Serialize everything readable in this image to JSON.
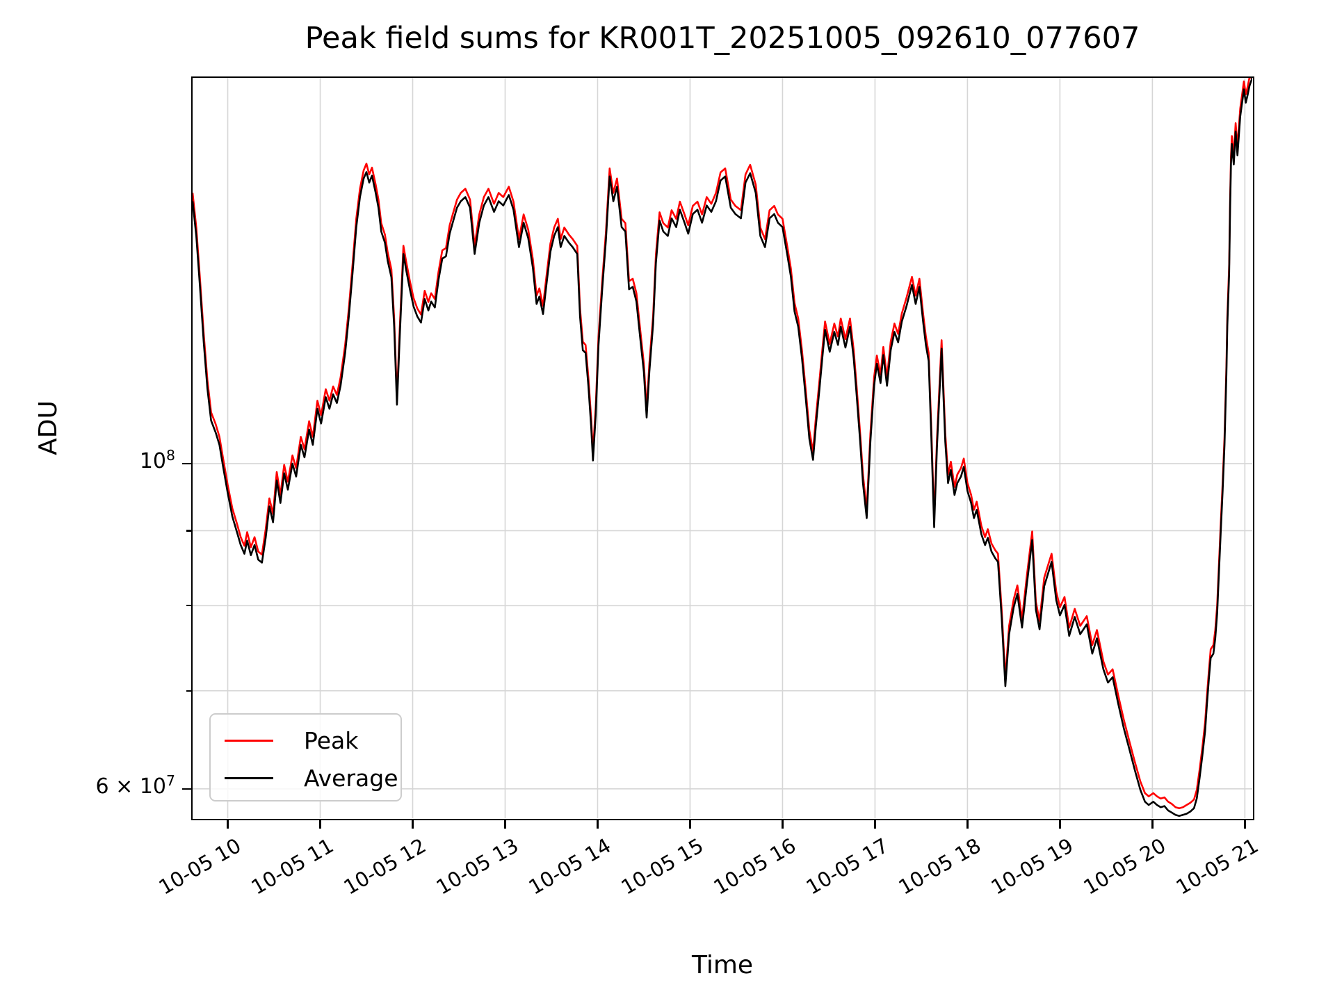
{
  "figure": {
    "title": "Peak field sums for KR001T_20251005_092610_077607",
    "xlabel": "Time",
    "ylabel": "ADU"
  },
  "legend": {
    "entries": [
      {
        "label": "Peak",
        "color": "#ff0000"
      },
      {
        "label": "Average",
        "color": "#000000"
      }
    ]
  },
  "chart_data": {
    "type": "line",
    "title": "Peak field sums for KR001T_20251005_092610_077607",
    "xlabel": "Time",
    "ylabel": "ADU",
    "yscale": "log",
    "grid": true,
    "grid_color": "#d6d6d6",
    "spine_color": "#000000",
    "legend_position": "lower left",
    "xlim_hours": [
      9.62,
      21.08
    ],
    "ylim": [
      57300000,
      183300000
    ],
    "x_ticks_hours": [
      10,
      11,
      12,
      13,
      14,
      15,
      16,
      17,
      18,
      19,
      20,
      21
    ],
    "x_tick_labels": [
      "10-05 10",
      "10-05 11",
      "10-05 12",
      "10-05 13",
      "10-05 14",
      "10-05 15",
      "10-05 16",
      "10-05 17",
      "10-05 18",
      "10-05 19",
      "10-05 20",
      "10-05 21"
    ],
    "y_major_ticks": [
      {
        "value_1e7": 10,
        "base": "10",
        "exp": "8"
      },
      {
        "value_1e7": 6,
        "base": "6 × 10",
        "exp": "7"
      }
    ],
    "y_minor_ticks_1e7": [
      7,
      8,
      9
    ],
    "y_gridline_values_1e7": [
      6,
      7,
      8,
      9,
      10
    ],
    "value_unit": "1e7 ADU",
    "x_hours": [
      9.62,
      9.66,
      9.7,
      9.74,
      9.78,
      9.82,
      9.87,
      9.91,
      9.95,
      10.0,
      10.05,
      10.1,
      10.14,
      10.18,
      10.21,
      10.25,
      10.29,
      10.33,
      10.37,
      10.41,
      10.45,
      10.49,
      10.53,
      10.57,
      10.61,
      10.65,
      10.7,
      10.74,
      10.79,
      10.83,
      10.88,
      10.92,
      10.97,
      11.01,
      11.06,
      11.1,
      11.14,
      11.18,
      11.22,
      11.27,
      11.31,
      11.35,
      11.39,
      11.43,
      11.47,
      11.5,
      11.53,
      11.56,
      11.6,
      11.63,
      11.66,
      11.7,
      11.73,
      11.77,
      11.8,
      11.83,
      11.86,
      11.9,
      11.93,
      11.97,
      12.01,
      12.05,
      12.09,
      12.13,
      12.17,
      12.2,
      12.24,
      12.28,
      12.32,
      12.36,
      12.4,
      12.44,
      12.48,
      12.52,
      12.57,
      12.62,
      12.67,
      12.72,
      12.77,
      12.82,
      12.88,
      12.93,
      12.98,
      13.04,
      13.09,
      13.15,
      13.2,
      13.25,
      13.3,
      13.34,
      13.37,
      13.41,
      13.45,
      13.49,
      13.53,
      13.57,
      13.6,
      13.64,
      13.69,
      13.73,
      13.78,
      13.81,
      13.84,
      13.87,
      13.9,
      13.93,
      13.95,
      13.98,
      14.01,
      14.05,
      14.09,
      14.13,
      14.17,
      14.21,
      14.26,
      14.3,
      14.34,
      14.38,
      14.42,
      14.46,
      14.5,
      14.53,
      14.56,
      14.6,
      14.63,
      14.67,
      14.71,
      14.76,
      14.8,
      14.85,
      14.89,
      14.94,
      14.98,
      15.03,
      15.08,
      15.13,
      15.18,
      15.23,
      15.28,
      15.33,
      15.38,
      15.44,
      15.49,
      15.55,
      15.6,
      15.65,
      15.71,
      15.76,
      15.81,
      15.86,
      15.91,
      15.95,
      16.0,
      16.05,
      16.09,
      16.13,
      16.17,
      16.21,
      16.25,
      16.29,
      16.33,
      16.36,
      16.4,
      16.43,
      16.46,
      16.51,
      16.56,
      16.6,
      16.63,
      16.68,
      16.73,
      16.77,
      16.8,
      16.84,
      16.87,
      16.91,
      16.95,
      16.99,
      17.02,
      17.06,
      17.09,
      17.13,
      17.17,
      17.21,
      17.25,
      17.29,
      17.34,
      17.4,
      17.44,
      17.48,
      17.52,
      17.55,
      17.58,
      17.61,
      17.64,
      17.67,
      17.72,
      17.76,
      17.79,
      17.82,
      17.86,
      17.89,
      17.93,
      17.96,
      18.0,
      18.04,
      18.07,
      18.1,
      18.15,
      18.19,
      18.22,
      18.26,
      18.3,
      18.33,
      18.37,
      18.41,
      18.45,
      18.5,
      18.54,
      18.59,
      18.64,
      18.7,
      18.74,
      18.78,
      18.83,
      18.91,
      18.96,
      19.0,
      19.05,
      19.1,
      19.16,
      19.22,
      19.29,
      19.35,
      19.4,
      19.47,
      19.52,
      19.57,
      19.63,
      19.69,
      19.75,
      19.81,
      19.87,
      19.92,
      19.96,
      20.01,
      20.05,
      20.09,
      20.13,
      20.17,
      20.21,
      20.25,
      20.29,
      20.33,
      20.37,
      20.41,
      20.45,
      20.48,
      20.51,
      20.54,
      20.57,
      20.59,
      20.61,
      20.63,
      20.66,
      20.68,
      20.7,
      20.72,
      20.74,
      20.76,
      20.78,
      20.8,
      20.81,
      20.83,
      20.84,
      20.85,
      20.86,
      20.88,
      20.9,
      20.92,
      20.95,
      20.99,
      21.01,
      21.03,
      21.05,
      21.08
    ],
    "series": [
      {
        "name": "Peak",
        "color": "#ff0000",
        "linewidth": 2.6,
        "values_1e7": [
          15.3,
          14.49,
          13.37,
          12.26,
          11.4,
          10.84,
          10.64,
          10.43,
          10.08,
          9.67,
          9.32,
          9.1,
          8.91,
          8.79,
          8.98,
          8.77,
          8.91,
          8.71,
          8.67,
          9.02,
          9.47,
          9.24,
          9.87,
          9.52,
          9.98,
          9.72,
          10.13,
          9.93,
          10.43,
          10.23,
          10.69,
          10.43,
          11.04,
          10.79,
          11.24,
          11.04,
          11.29,
          11.14,
          11.45,
          12.05,
          12.76,
          13.68,
          14.69,
          15.4,
          15.85,
          16.02,
          15.75,
          15.92,
          15.5,
          15.14,
          14.59,
          14.33,
          13.93,
          13.57,
          12.56,
          11.11,
          12.36,
          14.08,
          13.73,
          13.32,
          12.97,
          12.76,
          12.64,
          13.12,
          12.89,
          13.07,
          12.95,
          13.52,
          13.98,
          14.03,
          14.54,
          14.84,
          15.14,
          15.3,
          15.4,
          15.14,
          14.08,
          14.79,
          15.2,
          15.4,
          15.04,
          15.3,
          15.2,
          15.45,
          15.09,
          14.23,
          14.79,
          14.44,
          13.78,
          13.02,
          13.17,
          12.81,
          13.47,
          14.13,
          14.49,
          14.69,
          14.23,
          14.49,
          14.33,
          14.23,
          14.08,
          12.76,
          12.11,
          12.05,
          11.45,
          10.74,
          10.18,
          10.94,
          12.21,
          13.32,
          14.38,
          15.9,
          15.3,
          15.65,
          14.69,
          14.59,
          13.32,
          13.37,
          13.07,
          12.36,
          11.7,
          10.89,
          11.7,
          12.61,
          13.88,
          14.84,
          14.59,
          14.49,
          14.89,
          14.69,
          15.09,
          14.79,
          14.54,
          14.99,
          15.09,
          14.79,
          15.2,
          15.04,
          15.3,
          15.8,
          15.9,
          15.14,
          14.99,
          14.89,
          15.75,
          15.99,
          15.5,
          14.49,
          14.23,
          14.89,
          14.99,
          14.79,
          14.69,
          14.08,
          13.59,
          12.87,
          12.56,
          11.95,
          11.24,
          10.54,
          10.19,
          10.74,
          11.4,
          11.95,
          12.5,
          12.07,
          12.46,
          12.21,
          12.56,
          12.16,
          12.56,
          11.95,
          11.32,
          10.48,
          9.83,
          9.3,
          10.48,
          11.45,
          11.85,
          11.5,
          12.01,
          11.45,
          12.11,
          12.46,
          12.26,
          12.66,
          12.97,
          13.41,
          13.02,
          13.37,
          12.66,
          12.21,
          11.9,
          10.54,
          9.17,
          10.38,
          12.14,
          10.48,
          9.83,
          10.03,
          9.64,
          9.83,
          9.93,
          10.08,
          9.7,
          9.52,
          9.3,
          9.42,
          9.07,
          8.91,
          9.02,
          8.82,
          8.73,
          8.68,
          7.95,
          7.14,
          7.75,
          8.08,
          8.26,
          7.83,
          8.36,
          8.99,
          8.05,
          7.81,
          8.36,
          8.68,
          8.18,
          7.98,
          8.11,
          7.73,
          7.96,
          7.75,
          7.87,
          7.52,
          7.7,
          7.33,
          7.18,
          7.24,
          6.95,
          6.69,
          6.47,
          6.26,
          6.07,
          5.96,
          5.93,
          5.96,
          5.93,
          5.91,
          5.92,
          5.88,
          5.86,
          5.83,
          5.82,
          5.83,
          5.85,
          5.87,
          5.9,
          5.99,
          6.18,
          6.4,
          6.66,
          6.94,
          7.21,
          7.47,
          7.52,
          7.7,
          8.0,
          8.54,
          9.13,
          9.7,
          10.43,
          11.65,
          12.56,
          13.68,
          15.09,
          16.21,
          16.73,
          16.21,
          17.07,
          16.44,
          17.47,
          18.23,
          17.86,
          18.08,
          18.34,
          18.33
        ]
      },
      {
        "name": "Average",
        "color": "#000000",
        "linewidth": 2.6,
        "values_1e7": [
          15.1,
          14.3,
          13.2,
          12.1,
          11.25,
          10.7,
          10.5,
          10.3,
          9.95,
          9.55,
          9.2,
          8.98,
          8.8,
          8.68,
          8.86,
          8.66,
          8.8,
          8.6,
          8.56,
          8.9,
          9.35,
          9.12,
          9.74,
          9.4,
          9.85,
          9.6,
          10.0,
          9.8,
          10.3,
          10.1,
          10.55,
          10.3,
          10.9,
          10.65,
          11.1,
          10.9,
          11.15,
          11.0,
          11.3,
          11.9,
          12.6,
          13.5,
          14.5,
          15.2,
          15.65,
          15.81,
          15.55,
          15.72,
          15.3,
          14.95,
          14.4,
          14.15,
          13.75,
          13.4,
          12.4,
          10.97,
          12.2,
          13.9,
          13.55,
          13.15,
          12.8,
          12.6,
          12.48,
          12.95,
          12.72,
          12.9,
          12.78,
          13.35,
          13.8,
          13.85,
          14.35,
          14.65,
          14.95,
          15.1,
          15.2,
          14.95,
          13.9,
          14.6,
          15.0,
          15.2,
          14.85,
          15.1,
          15.0,
          15.25,
          14.9,
          14.05,
          14.6,
          14.25,
          13.6,
          12.85,
          13.0,
          12.65,
          13.3,
          13.95,
          14.3,
          14.5,
          14.05,
          14.3,
          14.15,
          14.05,
          13.9,
          12.6,
          11.95,
          11.9,
          11.3,
          10.6,
          10.05,
          10.8,
          12.05,
          13.15,
          14.2,
          15.7,
          15.1,
          15.45,
          14.5,
          14.4,
          13.15,
          13.2,
          12.9,
          12.2,
          11.55,
          10.75,
          11.55,
          12.45,
          13.7,
          14.65,
          14.4,
          14.3,
          14.7,
          14.5,
          14.9,
          14.6,
          14.35,
          14.8,
          14.9,
          14.6,
          15.0,
          14.85,
          15.1,
          15.6,
          15.7,
          14.95,
          14.8,
          14.7,
          15.55,
          15.78,
          15.3,
          14.3,
          14.05,
          14.7,
          14.8,
          14.6,
          14.5,
          13.9,
          13.42,
          12.7,
          12.4,
          11.8,
          11.1,
          10.4,
          10.06,
          10.6,
          11.25,
          11.8,
          12.34,
          11.92,
          12.3,
          12.05,
          12.4,
          12.0,
          12.4,
          11.8,
          11.17,
          10.35,
          9.7,
          9.18,
          10.35,
          11.3,
          11.7,
          11.35,
          11.86,
          11.3,
          11.95,
          12.3,
          12.1,
          12.5,
          12.8,
          13.24,
          12.85,
          13.2,
          12.5,
          12.05,
          11.75,
          10.4,
          9.05,
          10.25,
          11.98,
          10.35,
          9.7,
          9.9,
          9.52,
          9.7,
          9.8,
          9.95,
          9.58,
          9.4,
          9.18,
          9.3,
          8.95,
          8.8,
          8.9,
          8.71,
          8.62,
          8.57,
          7.85,
          7.05,
          7.65,
          7.98,
          8.15,
          7.73,
          8.25,
          8.87,
          7.95,
          7.71,
          8.25,
          8.57,
          8.07,
          7.88,
          8.01,
          7.63,
          7.86,
          7.65,
          7.77,
          7.42,
          7.6,
          7.24,
          7.09,
          7.15,
          6.86,
          6.6,
          6.39,
          6.18,
          5.99,
          5.88,
          5.85,
          5.88,
          5.85,
          5.83,
          5.84,
          5.8,
          5.78,
          5.76,
          5.75,
          5.76,
          5.77,
          5.79,
          5.82,
          5.91,
          6.1,
          6.32,
          6.57,
          6.85,
          7.12,
          7.37,
          7.42,
          7.6,
          7.9,
          8.43,
          9.01,
          9.58,
          10.3,
          11.5,
          12.4,
          13.5,
          14.9,
          16.0,
          16.52,
          16.0,
          16.85,
          16.23,
          17.25,
          18.0,
          17.63,
          17.85,
          18.1,
          18.33
        ]
      }
    ]
  }
}
